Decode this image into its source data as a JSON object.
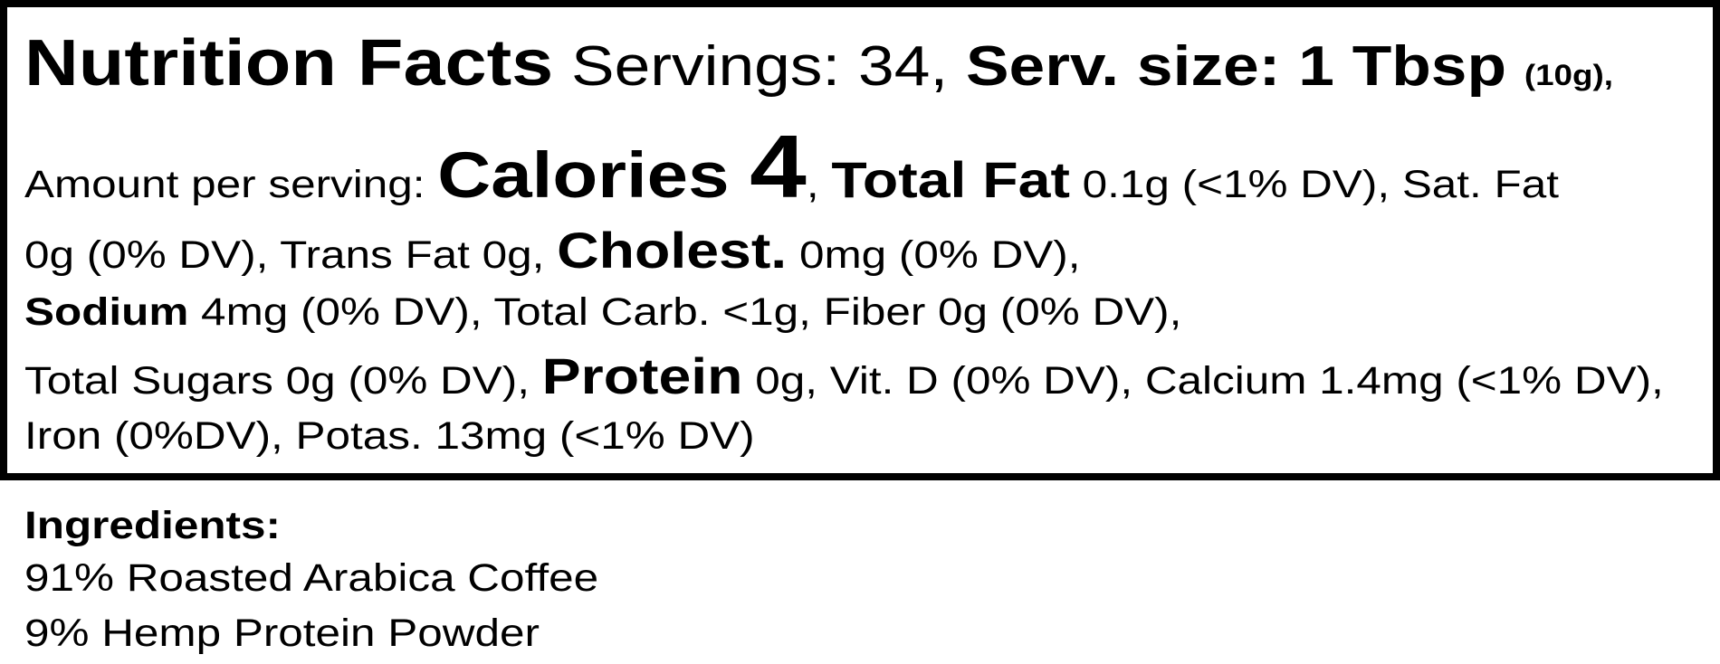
{
  "facts": {
    "title": "Nutrition Facts",
    "servings": " Servings: 34, ",
    "serving_size": "Serv. size: 1 Tbsp ",
    "serving_weight": "(10g),",
    "amount_label": "Amount per serving: ",
    "calories_label": "Calories ",
    "calories_value": "4",
    "after_calories": ", ",
    "total_fat_label": "Total Fat",
    "total_fat_value": " 0.1g (<1% DV), Sat. Fat",
    "line3_start": "0g (0% DV), Trans Fat 0g, ",
    "cholest_label": "Cholest.",
    "cholest_value": " 0mg (0% DV),",
    "sodium_label": "Sodium",
    "sodium_rest": " 4mg (0% DV), Total Carb. <1g, Fiber 0g (0% DV),",
    "line5_start": "Total Sugars 0g (0% DV), ",
    "protein_label": "Protein",
    "protein_rest": " 0g, Vit. D (0% DV), Calcium 1.4mg (<1% DV),",
    "line6": "Iron (0%DV), Potas. 13mg (<1% DV)"
  },
  "ingredients": {
    "heading": "Ingredients:",
    "items": [
      "91% Roasted Arabica Coffee",
      "9% Hemp Protein Powder"
    ]
  }
}
